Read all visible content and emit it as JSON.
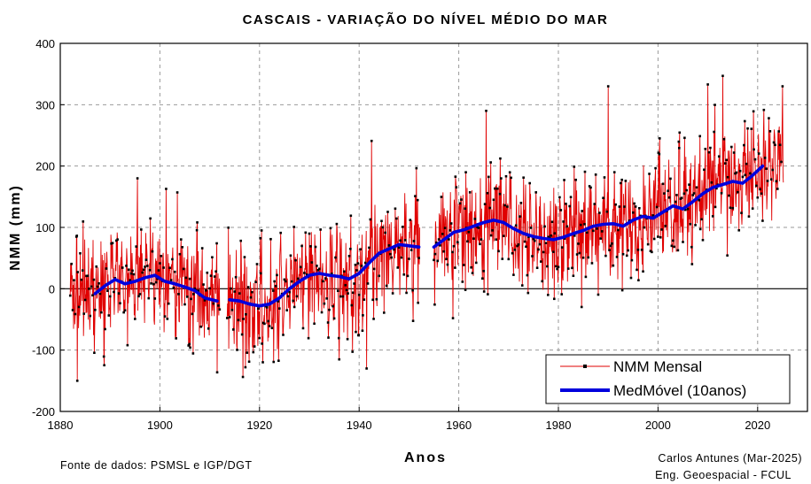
{
  "chart_data": {
    "type": "line",
    "title": "CASCAIS - VARIAÇÃO DO NÍVEL MÉDIO DO MAR",
    "xlabel": "Anos",
    "ylabel": "NMM (mm)",
    "xlim": [
      1880,
      2030
    ],
    "ylim": [
      -200,
      400
    ],
    "xticks": [
      1880,
      1900,
      1920,
      1940,
      1960,
      1980,
      2000,
      2020
    ],
    "yticks": [
      -200,
      -100,
      0,
      100,
      200,
      300,
      400
    ],
    "grid": true,
    "legend_position": "bottom-right",
    "series": [
      {
        "name": "NMM Mensal",
        "color": "#e00000",
        "marker_color": "#000000",
        "kind": "monthly",
        "segments": [
          {
            "start": 1882.0,
            "end": 1912.0
          },
          {
            "start": 1913.5,
            "end": 1952.2
          },
          {
            "start": 1955.0,
            "end": 2025.2
          }
        ],
        "noise_std_mm": 55,
        "approx_extremes": [
          {
            "x": 1883.4,
            "y": -150
          },
          {
            "x": 1895.5,
            "y": 180
          },
          {
            "x": 1903.5,
            "y": 157
          },
          {
            "x": 1941.5,
            "y": -130
          },
          {
            "x": 1942.5,
            "y": 241
          },
          {
            "x": 1965.5,
            "y": 290
          },
          {
            "x": 1990.0,
            "y": 330
          },
          {
            "x": 2010.0,
            "y": 333
          },
          {
            "x": 2013.0,
            "y": 347
          },
          {
            "x": 2025.0,
            "y": 330
          }
        ]
      },
      {
        "name": "MedMóvel (10anos)",
        "color": "#0000dd",
        "kind": "moving_average",
        "segments": [
          {
            "x": [
              1887,
              1889,
              1891,
              1893,
              1895,
              1897,
              1899,
              1901,
              1903,
              1905,
              1907,
              1909,
              1911.5
            ],
            "y": [
              -8,
              5,
              15,
              8,
              12,
              18,
              22,
              12,
              8,
              3,
              -3,
              -15,
              -20
            ]
          },
          {
            "x": [
              1914,
              1916,
              1918,
              1920,
              1922,
              1924,
              1926,
              1928,
              1930,
              1932,
              1934,
              1936,
              1938,
              1940,
              1942,
              1944,
              1946,
              1948,
              1950,
              1952
            ],
            "y": [
              -18,
              -20,
              -25,
              -28,
              -25,
              -15,
              0,
              12,
              22,
              25,
              22,
              20,
              16,
              25,
              42,
              58,
              65,
              72,
              70,
              68
            ]
          },
          {
            "x": [
              1955,
              1957,
              1959,
              1961,
              1963,
              1965,
              1967,
              1969,
              1971,
              1973,
              1975,
              1977,
              1979,
              1981,
              1983,
              1985,
              1987,
              1989,
              1991,
              1993,
              1995,
              1997,
              1999,
              2001,
              2003,
              2005,
              2007,
              2009,
              2011,
              2013,
              2015,
              2017,
              2019,
              2021
            ],
            "y": [
              68,
              80,
              92,
              96,
              102,
              108,
              112,
              108,
              98,
              90,
              85,
              82,
              80,
              84,
              90,
              95,
              102,
              105,
              106,
              102,
              112,
              118,
              115,
              125,
              135,
              130,
              142,
              155,
              165,
              170,
              175,
              172,
              185,
              200
            ]
          }
        ]
      }
    ]
  },
  "footer": {
    "source": "Fonte de dados: PSMSL e IGP/DGT",
    "author": "Carlos Antunes (Mar-2025)",
    "affiliation": "Eng. Geoespacial - FCUL"
  }
}
